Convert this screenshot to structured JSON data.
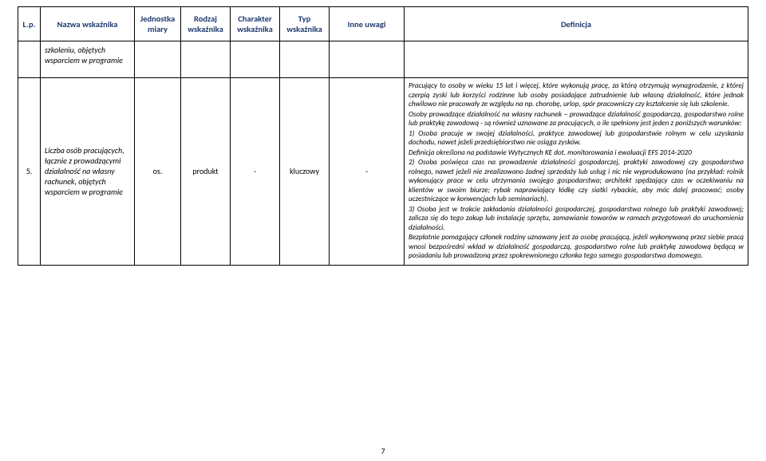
{
  "headers": {
    "lp": "L.p.",
    "nazwa": "Nazwa wskaźnika",
    "jednostka": "Jednostka miary",
    "rodzaj": "Rodzaj wskaźnika",
    "charakter": "Charakter wskaźnika",
    "typ": "Typ wskaźnika",
    "inne": "Inne uwagi",
    "definicja": "Definicja"
  },
  "row1": {
    "nazwa": "szkoleniu, objętych wsparciem w programie"
  },
  "row2": {
    "lp": "5.",
    "nazwa": "Liczba osób pracujących, łącznie z prowadzącymi działalność na własny rachunek, objętych wsparciem w programie",
    "jednostka": "os.",
    "rodzaj": "produkt",
    "charakter": "-",
    "typ": "kluczowy",
    "inne": "-",
    "def": {
      "p1": "Pracujący to osoby w wieku 15 lat i więcej, które wykonują pracę, za którą otrzymują wynagrodzenie, z której czerpią zyski lub korzyści rodzinne lub osoby posiadające zatrudnienie lub własną działalność, które jednak chwilowo nie pracowały ze względu na np. chorobę, urlop, spór pracowniczy czy kształcenie się lub szkolenie.",
      "p2": "Osoby prowadzące działalność na własny rachunek – prowadzące działalność gospodarczą, gospodarstwo rolne lub praktykę zawodową - są również uznawane za pracujących, o ile spełniony jest jeden z poniższych warunków:",
      "p3": "1) Osoba pracuje w swojej działalności, praktyce zawodowej lub gospodarstwie rolnym w celu uzyskania dochodu, nawet jeżeli przedsiębiorstwo nie osiąga zysków.",
      "p4a": "Definicja określona na podstawie Wytycznych KE dot. monitorowania i ewaluacji EFS 2014-2020",
      "p4b": "2) Osoba poświęca czas na prowadzenie działalności gospodarczej, praktyki zawodowej czy gospodarstwa rolnego, nawet jeżeli nie zrealizowano żadnej sprzedaży lub usług i nic nie wyprodukowano (na przykład: rolnik wykonujący prace w celu utrzymania swojego gospodarstwa; architekt spędzający czas w oczekiwaniu na klientów w swoim biurze; rybak naprawiający łódkę czy siatki rybackie, aby móc dalej pracować; osoby uczestniczące w konwencjach lub seminariach).",
      "p5": "3) Osoba jest w trakcie zakładania działalności gospodarczej, gospodarstwa rolnego lub praktyki zawodowej; zalicza się do tego zakup lub instalację sprzętu, zamawianie towarów w ramach przygotowań do uruchomienia działalności.",
      "p6": "Bezpłatnie pomagający członek rodziny uznawany jest za osobę pracującą, jeżeli wykonywaną przez siebie pracą wnosi bezpośredni wkład w działalność gospodarczą, gospodarstwo rolne lub praktykę zawodową będącą w posiadaniu lub prowadzoną przez spokrewnionego członka tego samego gospodarstwa domowego."
    }
  },
  "page": "7"
}
